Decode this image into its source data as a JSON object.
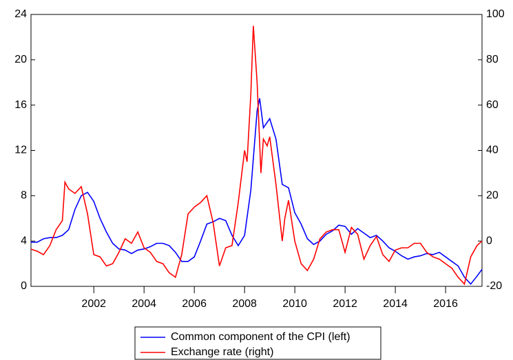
{
  "chart_data": {
    "type": "line",
    "xlim": [
      1999.5,
      2017.45
    ],
    "xticks": [
      2002,
      2004,
      2006,
      2008,
      2010,
      2012,
      2014,
      2016
    ],
    "ylim": [
      0,
      24
    ],
    "yticks": [
      0,
      4,
      8,
      12,
      16,
      20,
      24
    ],
    "y2lim": [
      -20,
      100
    ],
    "y2ticks": [
      -20,
      0,
      20,
      40,
      60,
      80,
      100
    ],
    "series": [
      {
        "name": "Common component of the CPI (left)",
        "color": "#0000ff",
        "x": [
          1999.5,
          1999.75,
          2000.0,
          2000.25,
          2000.5,
          2000.75,
          2001.0,
          2001.25,
          2001.5,
          2001.75,
          2002.0,
          2002.25,
          2002.5,
          2002.75,
          2003.0,
          2003.25,
          2003.5,
          2003.75,
          2004.0,
          2004.25,
          2004.5,
          2004.75,
          2005.0,
          2005.25,
          2005.5,
          2005.75,
          2006.0,
          2006.25,
          2006.5,
          2006.75,
          2007.0,
          2007.25,
          2007.5,
          2007.75,
          2008.0,
          2008.25,
          2008.5,
          2008.6,
          2008.75,
          2009.0,
          2009.25,
          2009.5,
          2009.75,
          2010.0,
          2010.25,
          2010.5,
          2010.75,
          2011.0,
          2011.25,
          2011.5,
          2011.75,
          2012.0,
          2012.25,
          2012.5,
          2012.75,
          2013.0,
          2013.25,
          2013.5,
          2013.75,
          2014.0,
          2014.25,
          2014.5,
          2014.75,
          2015.0,
          2015.25,
          2015.5,
          2015.75,
          2016.0,
          2016.25,
          2016.5,
          2016.75,
          2017.0,
          2017.25,
          2017.45
        ],
        "values": [
          3.9,
          3.9,
          4.2,
          4.3,
          4.3,
          4.5,
          5.0,
          6.8,
          8.0,
          8.3,
          7.5,
          6.0,
          4.8,
          3.8,
          3.3,
          3.2,
          2.9,
          3.2,
          3.3,
          3.5,
          3.8,
          3.8,
          3.6,
          3.0,
          2.2,
          2.2,
          2.6,
          4.0,
          5.5,
          5.7,
          6.0,
          5.8,
          4.5,
          3.6,
          4.5,
          8.5,
          15.5,
          16.6,
          14.0,
          14.8,
          13.0,
          9.0,
          8.7,
          6.5,
          5.5,
          4.2,
          3.7,
          4.0,
          4.6,
          4.9,
          5.4,
          5.3,
          4.6,
          5.1,
          4.7,
          4.3,
          4.5,
          4.0,
          3.4,
          3.1,
          2.7,
          2.4,
          2.6,
          2.7,
          2.9,
          2.8,
          3.0,
          2.6,
          2.2,
          1.8,
          0.8,
          0.2,
          0.9,
          1.5
        ]
      },
      {
        "name": "Exchange rate (right)",
        "color": "#ff0000",
        "axis": "y2",
        "x": [
          1999.5,
          1999.75,
          2000.0,
          2000.25,
          2000.5,
          2000.75,
          2000.85,
          2001.0,
          2001.25,
          2001.5,
          2001.75,
          2002.0,
          2002.25,
          2002.5,
          2002.75,
          2003.0,
          2003.25,
          2003.5,
          2003.75,
          2004.0,
          2004.25,
          2004.5,
          2004.75,
          2005.0,
          2005.25,
          2005.5,
          2005.75,
          2006.0,
          2006.25,
          2006.5,
          2006.75,
          2007.0,
          2007.25,
          2007.5,
          2007.75,
          2008.0,
          2008.1,
          2008.25,
          2008.35,
          2008.5,
          2008.65,
          2008.75,
          2008.9,
          2009.0,
          2009.25,
          2009.5,
          2009.6,
          2009.75,
          2010.0,
          2010.25,
          2010.5,
          2010.75,
          2011.0,
          2011.25,
          2011.5,
          2011.75,
          2012.0,
          2012.25,
          2012.5,
          2012.75,
          2013.0,
          2013.25,
          2013.5,
          2013.75,
          2014.0,
          2014.25,
          2014.5,
          2014.75,
          2015.0,
          2015.25,
          2015.5,
          2015.75,
          2016.0,
          2016.25,
          2016.5,
          2016.75,
          2017.0,
          2017.25,
          2017.45
        ],
        "values": [
          -3.6,
          -4.5,
          -6,
          -2,
          5,
          9,
          26,
          23,
          21,
          24,
          12,
          -6,
          -7,
          -11,
          -10,
          -5,
          1,
          -1,
          4,
          -3,
          -5,
          -9,
          -10,
          -14,
          -16,
          -6,
          12,
          15,
          17,
          20,
          8,
          -11,
          -3,
          -2,
          17,
          40,
          35,
          65,
          95,
          70,
          30,
          45,
          42,
          46,
          25,
          0,
          10,
          18,
          0,
          -10,
          -13,
          -8,
          1,
          4,
          5,
          5,
          -5,
          6,
          3,
          -8,
          -2,
          2,
          -6,
          -9,
          -4,
          -3,
          -3,
          -1,
          -1,
          -5,
          -7,
          -8,
          -10,
          -12,
          -16,
          -19,
          -7,
          -2,
          0
        ]
      }
    ]
  }
}
